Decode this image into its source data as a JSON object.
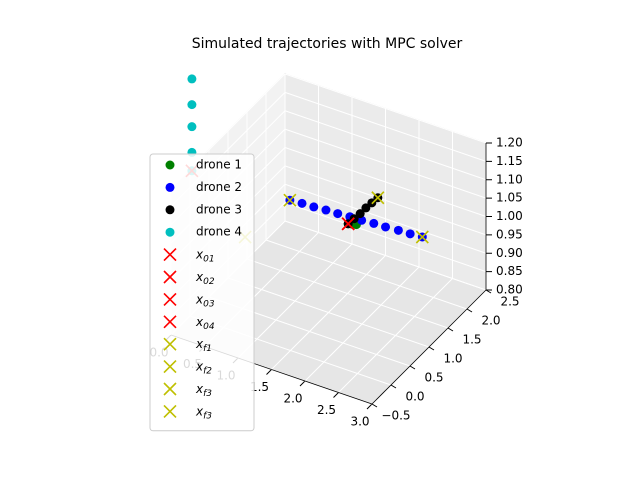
{
  "chart_data": {
    "type": "scatter3d",
    "title": "Simulated trajectories with MPC solver",
    "xlim": [
      0,
      3
    ],
    "ylim": [
      -0.5,
      2.5
    ],
    "zlim": [
      0.8,
      1.2
    ],
    "xticks": [
      {
        "value": 0,
        "label": "0.0"
      },
      0.5,
      {
        "value": 1,
        "label": "1.0"
      },
      1.5,
      {
        "value": 2,
        "label": "2.0"
      },
      2.5,
      {
        "value": 3,
        "label": "3.0"
      }
    ],
    "yticks": [
      {
        "value": -0.5,
        "label": "−0.5"
      },
      {
        "value": 0,
        "label": "0.0"
      },
      0.5,
      {
        "value": 1,
        "label": "1.0"
      },
      1.5,
      {
        "value": 2,
        "label": "2.0"
      },
      2.5
    ],
    "zticks": [
      {
        "value": 0.8,
        "label": "0.80"
      },
      0.85,
      {
        "value": 0.9,
        "label": "0.90"
      },
      0.95,
      {
        "value": 1.0,
        "label": "1.00"
      },
      1.05,
      {
        "value": 1.1,
        "label": "1.10"
      },
      1.15,
      {
        "value": 1.2,
        "label": "1.20"
      }
    ],
    "grid": true,
    "series": [
      {
        "name": "drone 1",
        "color": "#008000",
        "x": [
          1.55,
          1.6,
          1.65
        ],
        "y": [
          1.43,
          1.45,
          1.47
        ],
        "z": [
          1.0,
          1.0,
          1.0
        ]
      },
      {
        "name": "drone 2",
        "color": "#0000ff",
        "x": [
          0.64,
          0.81,
          0.98,
          1.15,
          1.32,
          1.49,
          1.66,
          1.83,
          2.0,
          2.18,
          2.35,
          2.52
        ],
        "y": [
          1.5,
          1.52,
          1.53,
          1.55,
          1.56,
          1.58,
          1.59,
          1.61,
          1.62,
          1.64,
          1.65,
          1.67
        ],
        "z": [
          1.0,
          1.0,
          1.0,
          1.0,
          1.0,
          1.0,
          1.0,
          1.0,
          1.0,
          1.0,
          1.0,
          1.0
        ]
      },
      {
        "name": "drone 3",
        "color": "#000000",
        "x": [
          1.55,
          1.56,
          1.57,
          1.57,
          1.58,
          1.59
        ],
        "y": [
          1.43,
          1.57,
          1.71,
          1.86,
          2.0,
          2.14
        ],
        "z": [
          1.0,
          1.0,
          1.0,
          1.0,
          1.0,
          1.0
        ]
      },
      {
        "name": "drone 4",
        "color": "#00bfbf",
        "x": [
          0,
          0,
          0,
          0,
          0
        ],
        "y": [
          0.05,
          0.05,
          0.05,
          0.05,
          0.05
        ],
        "z": [
          1.19,
          1.24,
          1.31,
          1.37,
          1.44
        ]
      }
    ],
    "points": [
      {
        "name": "x01",
        "color": "#ff0000",
        "x": 1.55,
        "y": 1.43,
        "z": 1.0
      },
      {
        "name": "x02",
        "color": "#ff0000",
        "x": 1.55,
        "y": 1.43,
        "z": 1.0
      },
      {
        "name": "x03",
        "color": "#ff0000",
        "x": 1.55,
        "y": 1.43,
        "z": 1.0
      },
      {
        "name": "x04",
        "color": "#ff0000",
        "x": 0,
        "y": 0.05,
        "z": 1.19
      },
      {
        "name": "xf1",
        "color": "#bfbf00",
        "x": 2.52,
        "y": 1.67,
        "z": 1.0
      },
      {
        "name": "xf2",
        "color": "#bfbf00",
        "x": 0.64,
        "y": 1.5,
        "z": 1.0
      },
      {
        "name": "xf3",
        "color": "#bfbf00",
        "x": 1.59,
        "y": 2.14,
        "z": 1.0
      },
      {
        "name": "xf3",
        "color": "#bfbf00",
        "x": 0,
        "y": 1.45,
        "z": 0.865
      }
    ]
  }
}
